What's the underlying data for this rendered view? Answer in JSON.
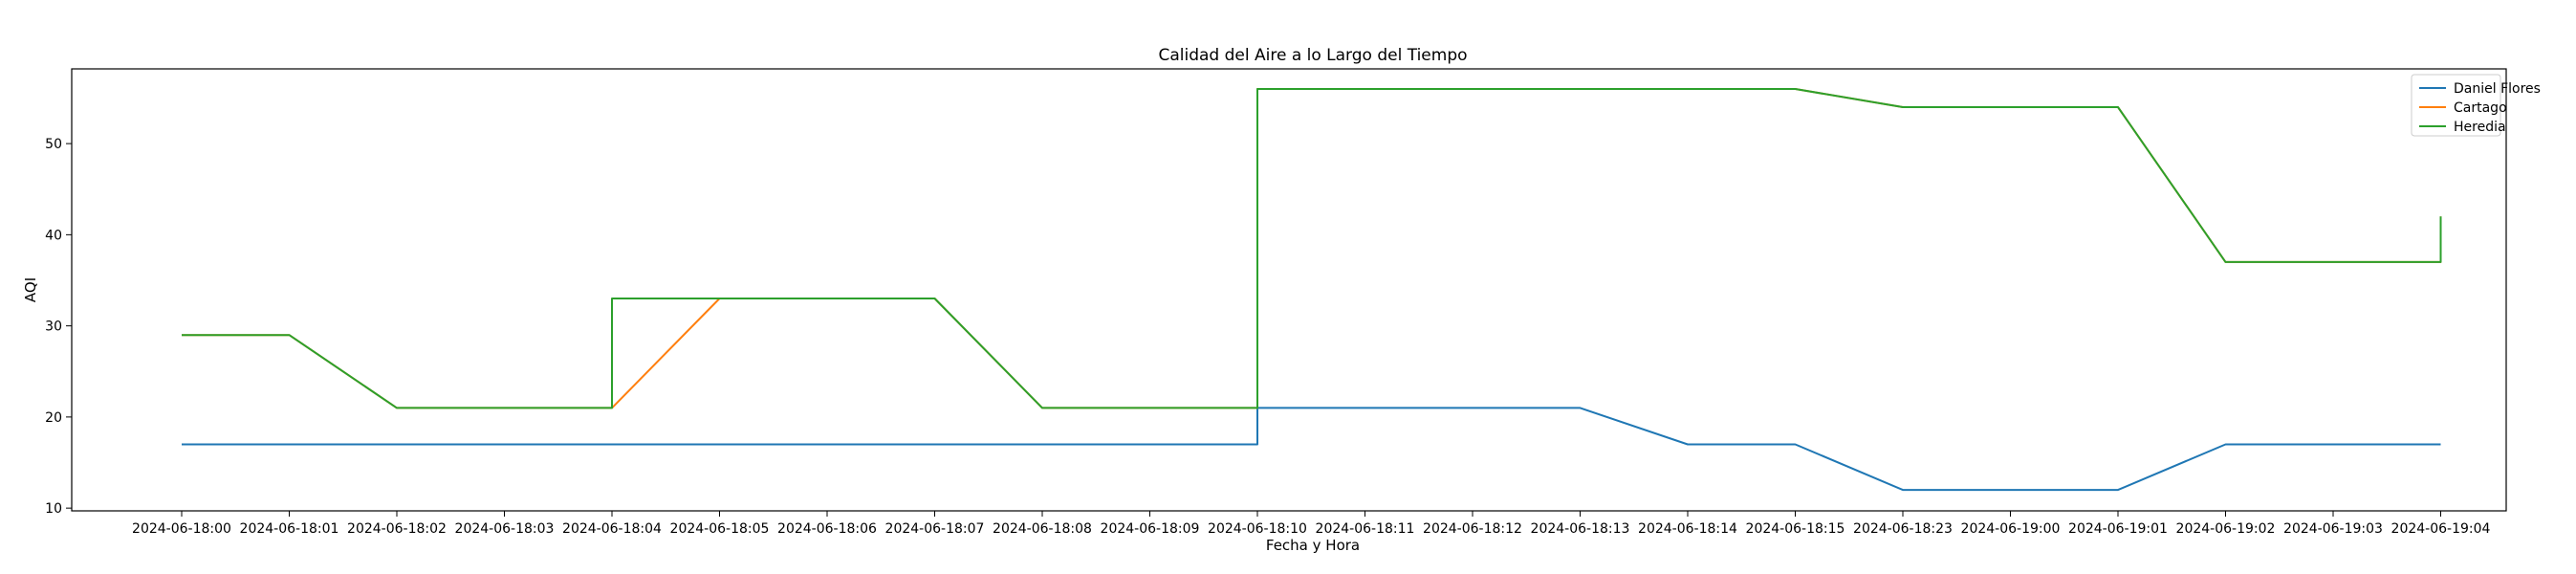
{
  "chart_data": {
    "type": "line",
    "title": "Calidad del Aire a lo Largo del Tiempo",
    "xlabel": "Fecha y Hora",
    "ylabel": "AQI",
    "categories": [
      "2024-06-18:00",
      "2024-06-18:01",
      "2024-06-18:02",
      "2024-06-18:03",
      "2024-06-18:04",
      "2024-06-18:05",
      "2024-06-18:06",
      "2024-06-18:07",
      "2024-06-18:08",
      "2024-06-18:09",
      "2024-06-18:10",
      "2024-06-18:11",
      "2024-06-18:12",
      "2024-06-18:13",
      "2024-06-18:14",
      "2024-06-18:15",
      "2024-06-18:23",
      "2024-06-19:00",
      "2024-06-19:01",
      "2024-06-19:02",
      "2024-06-19:03",
      "2024-06-19:04"
    ],
    "yticks": [
      10,
      20,
      30,
      40,
      50
    ],
    "ylim": [
      9.7,
      58.2
    ],
    "grid": false,
    "legend": "upper right",
    "series": [
      {
        "name": "Daniel Flores",
        "color": "#1f77b4",
        "points": [
          [
            "2024-06-18:00",
            17
          ],
          [
            "2024-06-18:01",
            17
          ],
          [
            "2024-06-18:02",
            17
          ],
          [
            "2024-06-18:03",
            17
          ],
          [
            "2024-06-18:04",
            17
          ],
          [
            "2024-06-18:05",
            17
          ],
          [
            "2024-06-18:06",
            17
          ],
          [
            "2024-06-18:07",
            17
          ],
          [
            "2024-06-18:08",
            17
          ],
          [
            "2024-06-18:09",
            17
          ],
          [
            "2024-06-18:10",
            17
          ],
          [
            "2024-06-18:10",
            21
          ],
          [
            "2024-06-18:11",
            21
          ],
          [
            "2024-06-18:12",
            21
          ],
          [
            "2024-06-18:13",
            21
          ],
          [
            "2024-06-18:14",
            17
          ],
          [
            "2024-06-18:15",
            17
          ],
          [
            "2024-06-18:23",
            12
          ],
          [
            "2024-06-19:00",
            12
          ],
          [
            "2024-06-19:01",
            12
          ],
          [
            "2024-06-19:02",
            17
          ],
          [
            "2024-06-19:03",
            17
          ],
          [
            "2024-06-19:04",
            17
          ]
        ]
      },
      {
        "name": "Cartago",
        "color": "#ff7f0e",
        "points": [
          [
            "2024-06-18:00",
            29
          ],
          [
            "2024-06-18:01",
            29
          ],
          [
            "2024-06-18:02",
            21
          ],
          [
            "2024-06-18:03",
            21
          ],
          [
            "2024-06-18:04",
            21
          ],
          [
            "2024-06-18:05",
            33
          ],
          [
            "2024-06-18:06",
            33
          ],
          [
            "2024-06-18:07",
            33
          ],
          [
            "2024-06-18:08",
            21
          ],
          [
            "2024-06-18:09",
            21
          ],
          [
            "2024-06-18:10",
            21
          ],
          [
            "2024-06-18:10",
            56
          ],
          [
            "2024-06-18:11",
            56
          ],
          [
            "2024-06-18:12",
            56
          ],
          [
            "2024-06-18:13",
            56
          ],
          [
            "2024-06-18:14",
            56
          ],
          [
            "2024-06-18:15",
            56
          ],
          [
            "2024-06-18:23",
            54
          ],
          [
            "2024-06-19:00",
            54
          ],
          [
            "2024-06-19:01",
            54
          ],
          [
            "2024-06-19:02",
            37
          ],
          [
            "2024-06-19:03",
            37
          ],
          [
            "2024-06-19:04",
            37
          ],
          [
            "2024-06-19:04",
            42
          ]
        ]
      },
      {
        "name": "Heredia",
        "color": "#2ca02c",
        "points": [
          [
            "2024-06-18:00",
            29
          ],
          [
            "2024-06-18:01",
            29
          ],
          [
            "2024-06-18:02",
            21
          ],
          [
            "2024-06-18:03",
            21
          ],
          [
            "2024-06-18:04",
            21
          ],
          [
            "2024-06-18:04",
            33
          ],
          [
            "2024-06-18:05",
            33
          ],
          [
            "2024-06-18:06",
            33
          ],
          [
            "2024-06-18:07",
            33
          ],
          [
            "2024-06-18:08",
            21
          ],
          [
            "2024-06-18:09",
            21
          ],
          [
            "2024-06-18:10",
            21
          ],
          [
            "2024-06-18:10",
            56
          ],
          [
            "2024-06-18:11",
            56
          ],
          [
            "2024-06-18:12",
            56
          ],
          [
            "2024-06-18:13",
            56
          ],
          [
            "2024-06-18:14",
            56
          ],
          [
            "2024-06-18:15",
            56
          ],
          [
            "2024-06-18:23",
            54
          ],
          [
            "2024-06-19:00",
            54
          ],
          [
            "2024-06-19:01",
            54
          ],
          [
            "2024-06-19:02",
            37
          ],
          [
            "2024-06-19:03",
            37
          ],
          [
            "2024-06-19:04",
            37
          ],
          [
            "2024-06-19:04",
            42
          ]
        ]
      }
    ]
  }
}
